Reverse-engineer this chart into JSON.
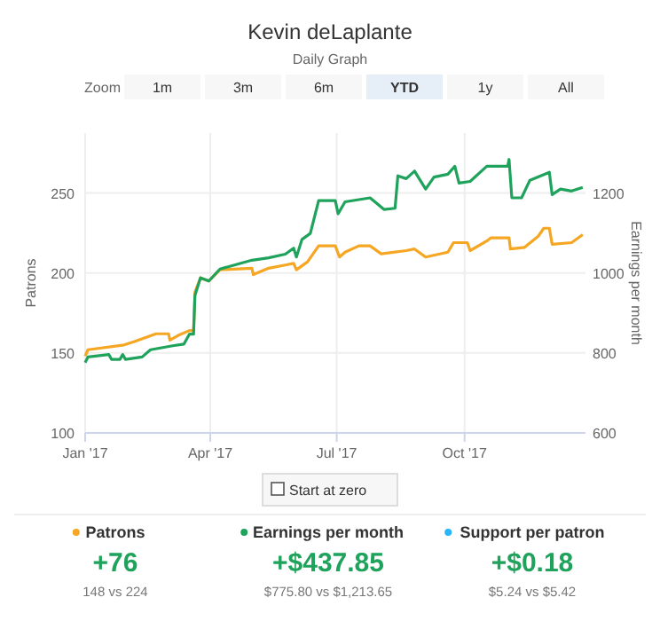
{
  "chart_data": [
    {
      "type": "line",
      "title": "Kevin deLaplante",
      "subtitle": "Daily Graph",
      "ylabel": "Patrons",
      "y2label": "Earnings per month",
      "xlim": [
        "2017-01-01",
        "2017-12-27"
      ],
      "xticks": [
        {
          "value": "2017-01-01",
          "label": "Jan '17"
        },
        {
          "value": "2017-04-01",
          "label": "Apr '17"
        },
        {
          "value": "2017-07-01",
          "label": "Jul '17"
        },
        {
          "value": "2017-10-01",
          "label": "Oct '17"
        }
      ],
      "ylim": [
        100,
        287.5
      ],
      "yticks": [
        100,
        150,
        200,
        250
      ],
      "y2lim": [
        600,
        1350
      ],
      "y2ticks": [
        600,
        800,
        1000,
        1200
      ],
      "grid": true,
      "marker": "none",
      "line_style": "solid",
      "annotations": [
        "Zoom",
        "1m",
        "3m",
        "6m",
        "YTD",
        "1y",
        "All",
        "Start at zero"
      ],
      "series": [
        {
          "color": "#f5a623",
          "x": [
            "2017-01-01",
            "2017-01-03",
            "2017-01-29",
            "2017-02-05",
            "2017-02-21",
            "2017-03-02",
            "2017-03-03",
            "2017-03-09",
            "2017-03-17",
            "2017-03-20",
            "2017-03-21",
            "2017-03-25",
            "2017-03-31",
            "2017-04-08",
            "2017-05-01",
            "2017-05-02",
            "2017-05-13",
            "2017-05-25",
            "2017-05-31",
            "2017-06-02",
            "2017-06-10",
            "2017-06-18",
            "2017-06-30",
            "2017-07-03",
            "2017-07-07",
            "2017-07-17",
            "2017-07-25",
            "2017-08-02",
            "2017-08-20",
            "2017-08-26",
            "2017-09-03",
            "2017-09-19",
            "2017-09-23",
            "2017-10-03",
            "2017-10-05",
            "2017-10-17",
            "2017-10-20",
            "2017-11-02",
            "2017-11-03",
            "2017-11-13",
            "2017-11-23",
            "2017-11-27",
            "2017-12-01",
            "2017-12-03",
            "2017-12-17",
            "2017-12-25"
          ],
          "values": [
            148,
            152,
            155,
            157,
            162,
            162,
            158,
            161,
            164,
            164,
            188,
            197,
            195,
            202,
            203,
            199,
            203,
            205,
            206,
            202,
            207,
            217,
            217,
            210,
            213,
            217,
            217,
            212,
            214,
            215,
            210,
            213,
            219,
            219,
            214,
            220,
            222,
            222,
            215,
            216,
            223,
            228,
            228,
            218,
            219,
            224
          ]
        },
        {
          "color": "#1fa35c",
          "axis": "y2",
          "x": [
            "2017-01-01",
            "2017-01-03",
            "2017-01-18",
            "2017-01-20",
            "2017-01-26",
            "2017-01-28",
            "2017-01-30",
            "2017-02-11",
            "2017-02-17",
            "2017-03-05",
            "2017-03-13",
            "2017-03-17",
            "2017-03-20",
            "2017-03-21",
            "2017-03-25",
            "2017-03-31",
            "2017-04-08",
            "2017-05-01",
            "2017-05-13",
            "2017-05-25",
            "2017-05-31",
            "2017-06-02",
            "2017-06-06",
            "2017-06-12",
            "2017-06-18",
            "2017-06-30",
            "2017-07-02",
            "2017-07-07",
            "2017-07-25",
            "2017-08-04",
            "2017-08-12",
            "2017-08-14",
            "2017-08-20",
            "2017-08-26",
            "2017-09-03",
            "2017-09-09",
            "2017-09-19",
            "2017-09-24",
            "2017-09-27",
            "2017-10-05",
            "2017-10-17",
            "2017-11-01",
            "2017-11-02",
            "2017-11-04",
            "2017-11-11",
            "2017-11-17",
            "2017-12-01",
            "2017-12-03",
            "2017-12-09",
            "2017-12-17",
            "2017-12-25"
          ],
          "values": [
            776,
            790,
            796,
            784,
            784,
            796,
            784,
            790,
            808,
            818,
            822,
            847,
            847,
            944,
            988,
            980,
            1010,
            1032,
            1038,
            1047,
            1062,
            1040,
            1084,
            1099,
            1181,
            1181,
            1148,
            1178,
            1188,
            1159,
            1162,
            1243,
            1236,
            1255,
            1210,
            1240,
            1247,
            1267,
            1225,
            1229,
            1267,
            1267,
            1284,
            1188,
            1188,
            1232,
            1252,
            1196,
            1210,
            1205,
            1214
          ]
        }
      ]
    },
    {
      "type": "other",
      "categories": [
        "Patrons",
        "Earnings per month",
        "Support per patron"
      ],
      "colors": [
        "#f5a623",
        "#1fa35c",
        "#29b6f6"
      ],
      "annotations": [
        "+76",
        "148 vs 224",
        "+$437.85",
        "$775.80 vs $1,213.65",
        "+$0.18",
        "$5.24 vs $5.42"
      ]
    }
  ]
}
